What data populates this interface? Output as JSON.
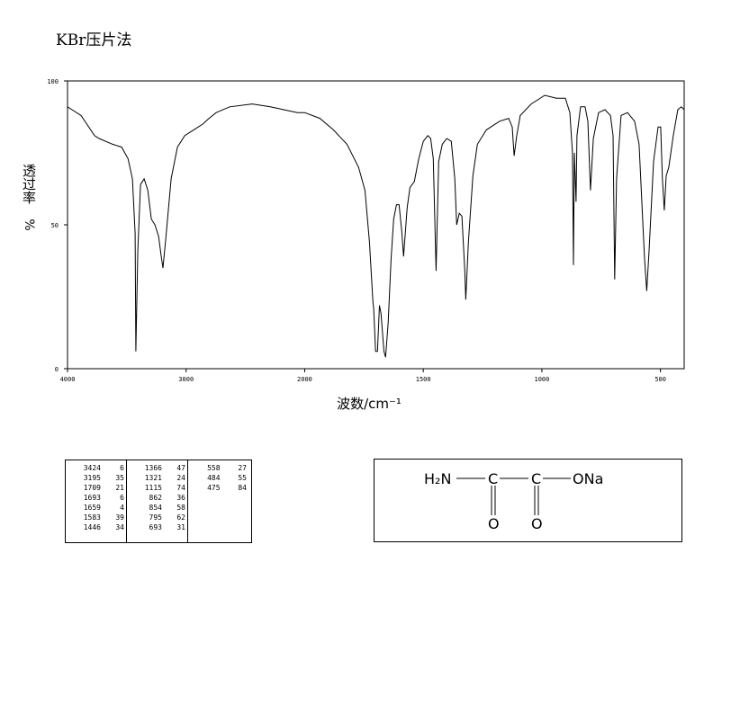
{
  "chart_data": {
    "type": "line",
    "title": "KBr压片法",
    "x_label": "波数/cm⁻¹",
    "y_label": "透过率",
    "y_unit": "%",
    "xlim": [
      4000,
      400
    ],
    "ylim": [
      0,
      100
    ],
    "xticks": [
      4000,
      3000,
      2000,
      1500,
      1000,
      500
    ],
    "yticks": [
      0,
      50,
      100
    ],
    "x_scale": {
      "break": 2000,
      "factor": 2
    },
    "color": "#000000",
    "x": [
      4000,
      3962,
      3886,
      3772,
      3734,
      3620,
      3544,
      3490,
      3453,
      3430,
      3424,
      3407,
      3384,
      3354,
      3323,
      3293,
      3263,
      3232,
      3210,
      3195,
      3172,
      3126,
      3073,
      3012,
      2936,
      2860,
      2807,
      2746,
      2632,
      2442,
      2290,
      2176,
      2062,
      2000,
      1936,
      1879,
      1822,
      1773,
      1746,
      1727,
      1712,
      1709,
      1701,
      1693,
      1685,
      1678,
      1666,
      1659,
      1648,
      1636,
      1625,
      1613,
      1602,
      1591,
      1583,
      1568,
      1556,
      1538,
      1519,
      1500,
      1481,
      1469,
      1458,
      1446,
      1435,
      1420,
      1401,
      1382,
      1367,
      1359,
      1348,
      1337,
      1325,
      1321,
      1310,
      1291,
      1272,
      1234,
      1178,
      1140,
      1125,
      1117,
      1106,
      1091,
      1045,
      988,
      939,
      901,
      882,
      871,
      867,
      863,
      856,
      852,
      837,
      818,
      806,
      795,
      783,
      761,
      734,
      711,
      700,
      693,
      685,
      666,
      639,
      609,
      590,
      567,
      558,
      548,
      529,
      510,
      499,
      492,
      484,
      476,
      465,
      446,
      427,
      412,
      400
    ],
    "values": [
      91,
      90,
      88,
      81,
      80,
      78,
      77,
      73,
      66,
      47,
      6,
      41,
      64,
      66,
      62,
      52,
      50,
      46,
      39,
      35,
      45,
      66,
      77,
      81,
      83,
      85,
      87,
      89,
      91,
      92,
      91,
      90,
      89,
      89,
      87,
      83,
      78,
      70,
      62,
      44,
      23,
      21,
      6,
      6,
      22,
      19,
      6,
      4,
      16,
      38,
      52,
      57,
      57,
      48,
      39,
      56,
      63,
      65,
      73,
      79,
      81,
      80,
      73,
      34,
      72,
      78,
      80,
      79,
      66,
      50,
      54,
      53,
      34,
      24,
      44,
      67,
      78,
      83,
      86,
      87,
      84,
      74,
      81,
      88,
      92,
      95,
      94,
      94,
      89,
      75,
      36,
      75,
      58,
      81,
      91,
      91,
      86,
      62,
      80,
      89,
      90,
      88,
      81,
      31,
      66,
      88,
      89,
      86,
      78,
      38,
      27,
      41,
      72,
      84,
      84,
      66,
      55,
      67,
      70,
      81,
      90,
      91,
      90
    ]
  },
  "peak_table": {
    "columns": [
      [
        [
          3424,
          6
        ],
        [
          3195,
          35
        ],
        [
          1709,
          21
        ],
        [
          1693,
          6
        ],
        [
          1659,
          4
        ],
        [
          1583,
          39
        ],
        [
          1446,
          34
        ]
      ],
      [
        [
          1366,
          47
        ],
        [
          1321,
          24
        ],
        [
          1115,
          74
        ],
        [
          862,
          36
        ],
        [
          854,
          58
        ],
        [
          795,
          62
        ],
        [
          693,
          31
        ]
      ],
      [
        [
          558,
          27
        ],
        [
          484,
          55
        ],
        [
          475,
          84
        ]
      ]
    ]
  },
  "structure": {
    "amine": "H₂N",
    "carbon_1": "C",
    "carbon_2": "C",
    "salt": "ONa",
    "oxygen_1": "O",
    "oxygen_2": "O"
  }
}
